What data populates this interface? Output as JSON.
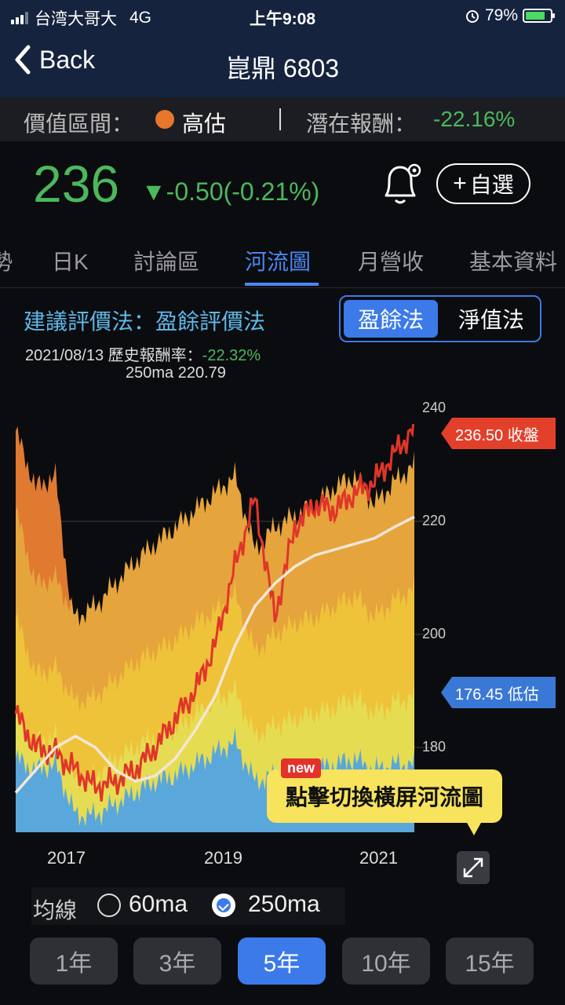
{
  "status_bar": {
    "carrier": "台湾大哥大",
    "network": "4G",
    "time": "上午9:08",
    "battery": "79%",
    "battery_level": 0.79
  },
  "nav": {
    "back_label": "Back",
    "title": "崑鼎 6803"
  },
  "valuation": {
    "label": "價值區間：",
    "status": "高估",
    "status_color": "#e8762c",
    "potential_label": "潛在報酬：",
    "potential_value": "-22.16%"
  },
  "quote": {
    "price": "236",
    "change": "▼-0.50(-0.21%)",
    "favorite_label": "自選",
    "up_color": "#4cb85c"
  },
  "tabs": [
    {
      "label": "勢"
    },
    {
      "label": "日K"
    },
    {
      "label": "討論區"
    },
    {
      "label": "河流圖",
      "active": true
    },
    {
      "label": "月營收"
    },
    {
      "label": "基本資料"
    }
  ],
  "method": {
    "title": "建議評價法：盈餘評價法",
    "options": [
      "盈餘法",
      "淨值法"
    ],
    "selected": "盈餘法",
    "history_date_label": "2021/08/13 歷史報酬率：",
    "history_return": "-22.32%",
    "ma_label": "250ma 220.79"
  },
  "chart_data": {
    "type": "area",
    "title": "",
    "xlabel": "",
    "ylabel": "",
    "ylim": [
      165,
      240
    ],
    "x_ticks": [
      "2017",
      "2019",
      "2021"
    ],
    "y_ticks": [
      180,
      200,
      220,
      240
    ],
    "grid": true,
    "x": [
      0,
      0.05,
      0.1,
      0.15,
      0.2,
      0.25,
      0.3,
      0.35,
      0.4,
      0.45,
      0.5,
      0.55,
      0.6,
      0.65,
      0.7,
      0.75,
      0.8,
      0.85,
      0.9,
      0.95,
      1.0
    ],
    "series": [
      {
        "name": "band1",
        "color": "#5aa7dc",
        "values": [
          178,
          176,
          177,
          168,
          168,
          170,
          172,
          174,
          175,
          177,
          179,
          181,
          174,
          175,
          176,
          176,
          177,
          178,
          176,
          177,
          177
        ]
      },
      {
        "name": "band2",
        "color": "#e6dc52",
        "values": [
          185,
          181,
          182,
          174,
          175,
          178,
          180,
          182,
          183,
          186,
          188,
          190,
          182,
          184,
          185,
          186,
          187,
          189,
          186,
          188,
          189
        ]
      },
      {
        "name": "band3",
        "color": "#eec33a",
        "values": [
          203,
          193,
          194,
          188,
          189,
          192,
          195,
          197,
          199,
          202,
          204,
          207,
          197,
          200,
          202,
          203,
          205,
          207,
          203,
          206,
          208
        ]
      },
      {
        "name": "band4",
        "color": "#e6a43c",
        "values": [
          222,
          209,
          210,
          203,
          205,
          209,
          213,
          216,
          219,
          222,
          225,
          228,
          215,
          219,
          221,
          223,
          226,
          228,
          223,
          227,
          230
        ]
      },
      {
        "name": "band5",
        "color": "#df7a30",
        "values": [
          236,
          226,
          228,
          198,
          201,
          206,
          210,
          213,
          216,
          219,
          222,
          225,
          213,
          216,
          218,
          220,
          223,
          226,
          221,
          226,
          228
        ]
      },
      {
        "name": "close",
        "color": "#e0352a",
        "values": [
          186,
          180,
          179,
          176,
          173,
          174,
          176,
          180,
          185,
          190,
          198,
          212,
          224,
          203,
          219,
          223,
          222,
          225,
          227,
          232,
          236.5
        ]
      },
      {
        "name": "250ma",
        "color": "#f5e6d8",
        "values": [
          172,
          176,
          180,
          182,
          180,
          176,
          174,
          175,
          178,
          183,
          189,
          198,
          205,
          209,
          212,
          214,
          215,
          216,
          217,
          219,
          220.79
        ]
      }
    ],
    "close_tag": "236.50 收盤",
    "low_tag": "176.45 低估"
  },
  "tooltip": {
    "new_badge": "new",
    "text": "點擊切換橫屏河流圖"
  },
  "ma_options": {
    "label": "均線",
    "items": [
      {
        "label": "60ma",
        "checked": false
      },
      {
        "label": "250ma",
        "checked": true
      }
    ]
  },
  "periods": [
    {
      "label": "1年"
    },
    {
      "label": "3年"
    },
    {
      "label": "5年",
      "active": true
    },
    {
      "label": "10年"
    },
    {
      "label": "15年"
    }
  ]
}
